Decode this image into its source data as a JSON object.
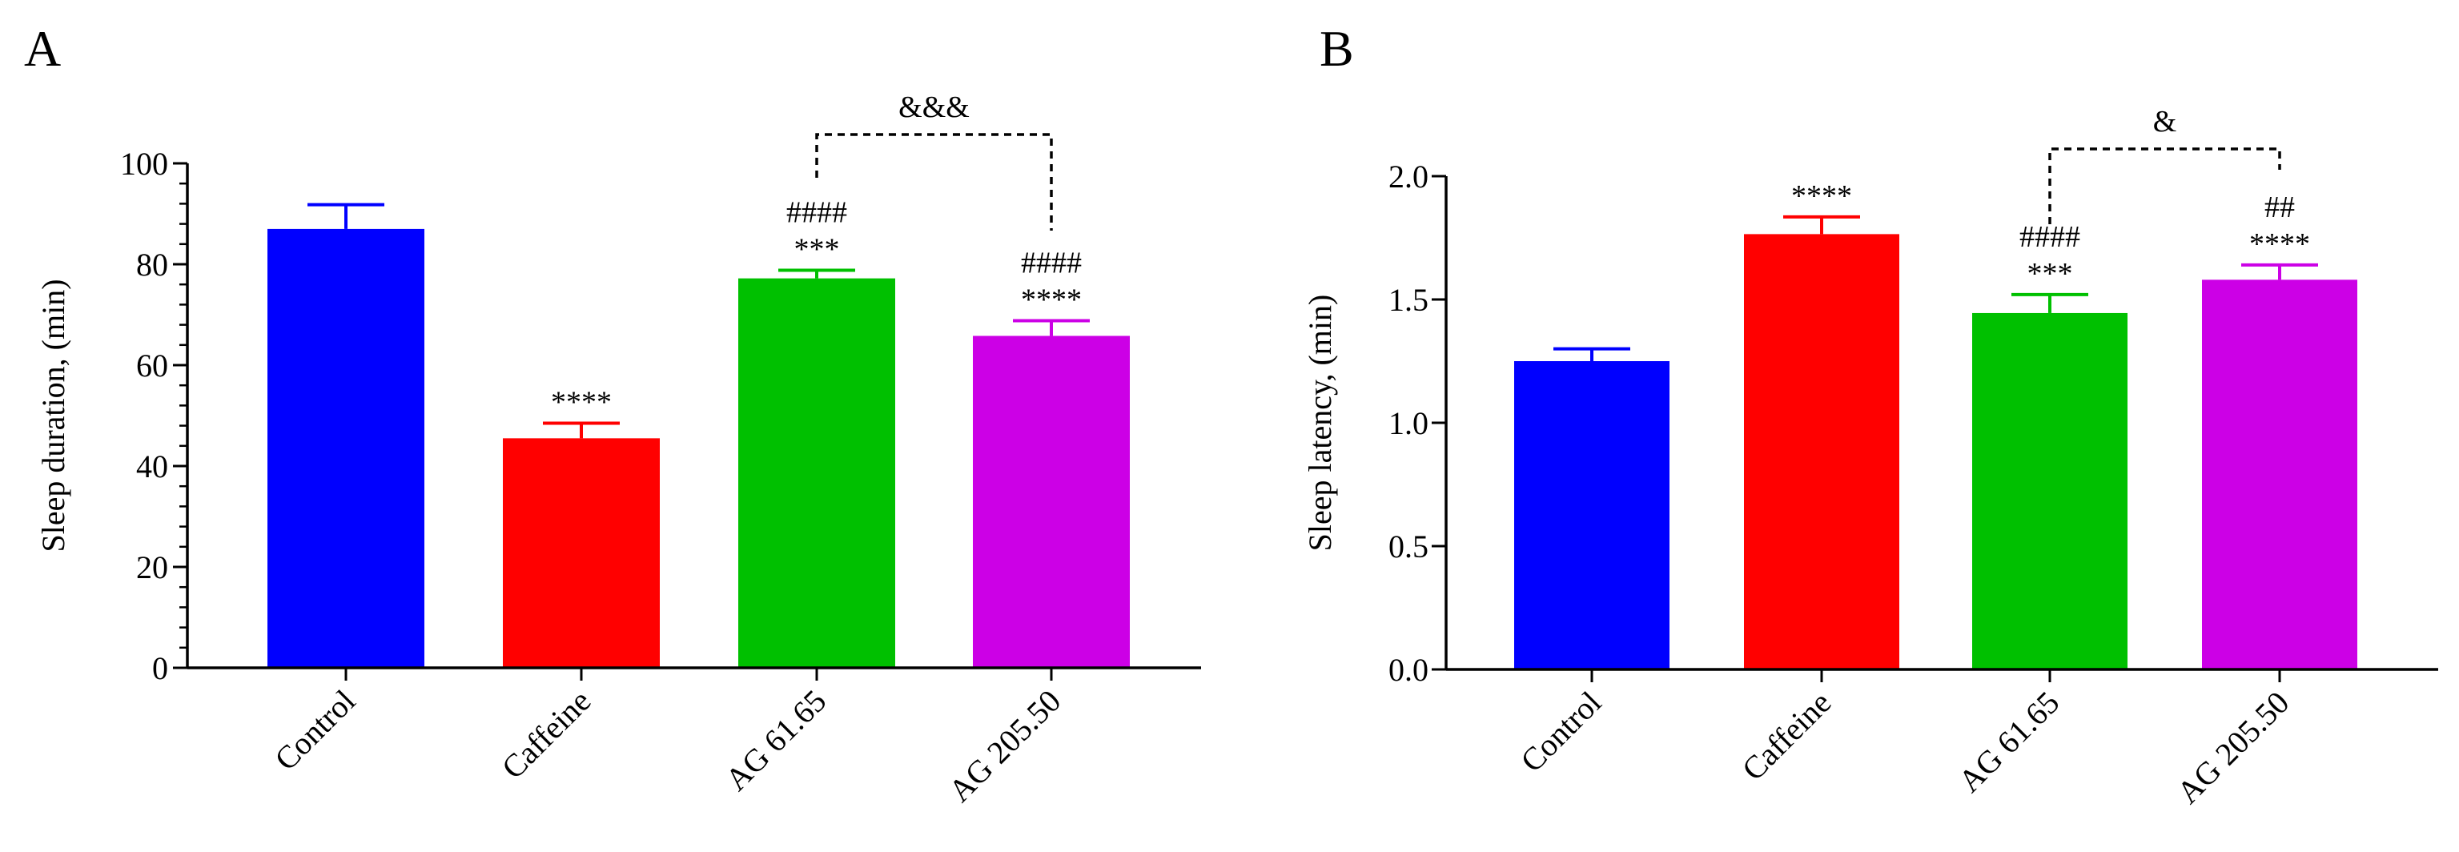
{
  "chart_data": [
    {
      "type": "bar",
      "panel_label": "A",
      "ylabel": "Sleep duration, (min)",
      "xlabel": "",
      "categories": [
        "Control",
        "Caffeine",
        "AG 61.65",
        "AG 205.50"
      ],
      "values": [
        87,
        45.5,
        77.2,
        65.8
      ],
      "errors": [
        4.8,
        3,
        1.6,
        3
      ],
      "colors": [
        "#0000FF",
        "#FF0000",
        "#00C000",
        "#CC00E6"
      ],
      "ylim": [
        0,
        100
      ],
      "yticks": [
        "0",
        "20",
        "40",
        "60",
        "80",
        "100"
      ],
      "annotations": [
        {
          "category": 1,
          "lines": [
            "****"
          ]
        },
        {
          "category": 2,
          "lines": [
            "####",
            "***"
          ]
        },
        {
          "category": 3,
          "lines": [
            "####",
            "****"
          ]
        }
      ],
      "bracket": {
        "from": 2,
        "to": 3,
        "label": "&&&"
      }
    },
    {
      "type": "bar",
      "panel_label": "B",
      "ylabel": "Sleep latency,  (min)",
      "xlabel": "",
      "categories": [
        "Control",
        "Caffeine",
        "AG 61.65",
        "AG 205.50"
      ],
      "values": [
        1.25,
        1.765,
        1.445,
        1.58
      ],
      "errors": [
        0.05,
        0.07,
        0.075,
        0.06
      ],
      "colors": [
        "#0000FF",
        "#FF0000",
        "#00C000",
        "#CC00E6"
      ],
      "ylim": [
        0,
        2.0
      ],
      "yticks": [
        "0.0",
        "0.5",
        "1.0",
        "1.5",
        "2.0"
      ],
      "annotations": [
        {
          "category": 1,
          "lines": [
            "****"
          ]
        },
        {
          "category": 2,
          "lines": [
            "####",
            "***"
          ]
        },
        {
          "category": 3,
          "lines": [
            "##",
            "****"
          ]
        }
      ],
      "bracket": {
        "from": 2,
        "to": 3,
        "label": "&"
      }
    }
  ]
}
